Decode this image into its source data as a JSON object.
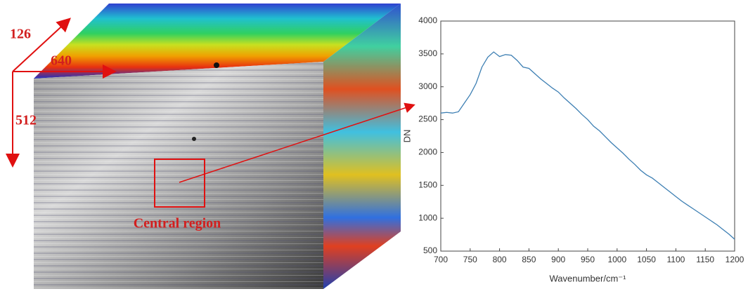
{
  "cube": {
    "labels": {
      "bands": "126",
      "width": "640",
      "height": "512",
      "region": "Central region"
    }
  },
  "chart_data": {
    "type": "line",
    "x_label": "Wavenumber/cm⁻¹",
    "y_label": "DN",
    "x": [
      700,
      710,
      720,
      730,
      740,
      750,
      760,
      770,
      780,
      790,
      800,
      810,
      820,
      830,
      840,
      850,
      860,
      870,
      880,
      890,
      900,
      910,
      920,
      930,
      940,
      950,
      960,
      970,
      980,
      990,
      1000,
      1010,
      1020,
      1030,
      1040,
      1050,
      1060,
      1070,
      1080,
      1090,
      1100,
      1110,
      1120,
      1130,
      1140,
      1150,
      1160,
      1170,
      1180,
      1190,
      1200
    ],
    "series": [
      {
        "color": "#3d7fb3",
        "values": [
          2600,
          2610,
          2600,
          2620,
          2750,
          2880,
          3050,
          3300,
          3450,
          3530,
          3460,
          3490,
          3480,
          3400,
          3300,
          3280,
          3200,
          3120,
          3050,
          2980,
          2920,
          2830,
          2750,
          2670,
          2580,
          2500,
          2400,
          2330,
          2240,
          2150,
          2070,
          1990,
          1900,
          1820,
          1730,
          1660,
          1610,
          1540,
          1470,
          1400,
          1330,
          1260,
          1200,
          1140,
          1080,
          1020,
          960,
          900,
          830,
          760,
          680
        ]
      }
    ],
    "xlim": [
      700,
      1200
    ],
    "xticks": [
      700,
      750,
      800,
      850,
      900,
      950,
      1000,
      1050,
      1100,
      1150,
      1200
    ],
    "ylim": [
      500,
      4000
    ],
    "yticks": [
      500,
      1000,
      1500,
      2000,
      2500,
      3000,
      3500,
      4000
    ]
  }
}
